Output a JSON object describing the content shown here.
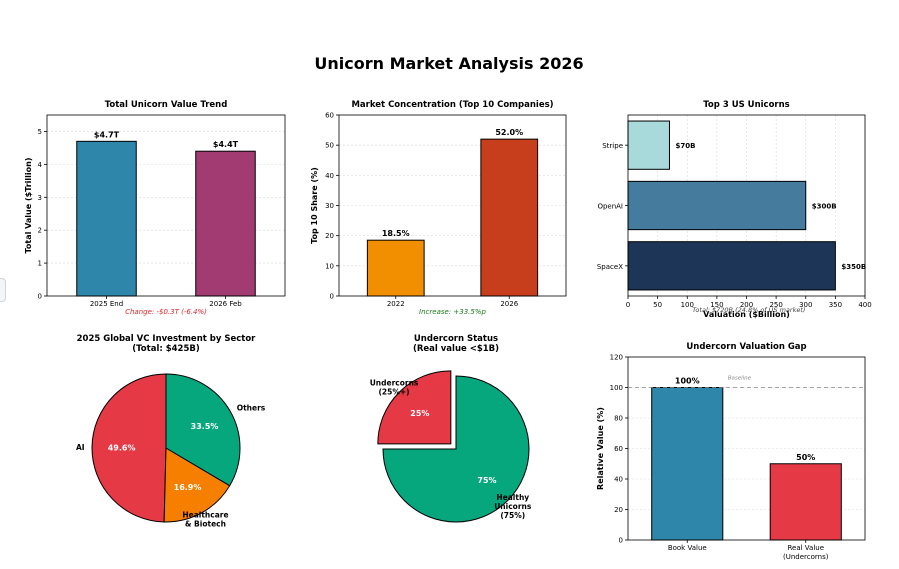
{
  "main_title": "Unicorn Market Analysis 2026",
  "colors": {
    "axis": "#000000",
    "grid": "#d9d9d9",
    "text": "#000000",
    "change_text": "#e0262a",
    "increase_text": "#1e7a1e",
    "note_text": "#444444",
    "baseline": "#8a8a8a"
  },
  "chart_data": [
    {
      "id": "value_trend",
      "type": "bar",
      "title": "Total Unicorn Value Trend",
      "ylabel": "Total Value ($Trillion)",
      "xlabel": "",
      "ylim": [
        0,
        5.5
      ],
      "yticks": [
        0,
        1,
        2,
        3,
        4,
        5
      ],
      "categories": [
        "2025 End",
        "2026 Feb"
      ],
      "values": [
        4.7,
        4.4
      ],
      "value_labels": [
        "$4.7T",
        "$4.4T"
      ],
      "colors": [
        "#2e86ab",
        "#a23b72"
      ],
      "annotation": "Change: -$0.3T (-6.4%)",
      "grid": true
    },
    {
      "id": "concentration",
      "type": "bar",
      "title": "Market Concentration (Top 10 Companies)",
      "ylabel": "Top 10 Share (%)",
      "xlabel": "",
      "ylim": [
        0,
        60
      ],
      "yticks": [
        0,
        10,
        20,
        30,
        40,
        50,
        60
      ],
      "categories": [
        "2022",
        "2026"
      ],
      "values": [
        18.5,
        52.0
      ],
      "value_labels": [
        "18.5%",
        "52.0%"
      ],
      "colors": [
        "#f18f01",
        "#c73e1d"
      ],
      "annotation": "Increase: +33.5%p",
      "grid": true
    },
    {
      "id": "top3_us",
      "type": "bar",
      "orientation": "horizontal",
      "title": "Top 3 US Unicorns",
      "xlabel": "Valuation ($Billion)",
      "ylabel": "",
      "xlim": [
        0,
        400
      ],
      "xticks": [
        0,
        50,
        100,
        150,
        200,
        250,
        300,
        350,
        400
      ],
      "categories": [
        "SpaceX",
        "OpenAI",
        "Stripe"
      ],
      "values": [
        350,
        300,
        70
      ],
      "value_labels": [
        "$350B",
        "$300B",
        "$70B"
      ],
      "colors": [
        "#1d3557",
        "#457b9d",
        "#a8dadc"
      ],
      "annotation": "Total: $720B (24.8% of US market)",
      "grid": true
    },
    {
      "id": "vc_sector",
      "type": "pie",
      "title": "2025 Global VC Investment by Sector",
      "subtitle": "(Total: $425B)",
      "labels": [
        "AI",
        "Healthcare & Biotech",
        "Others"
      ],
      "label_lines": [
        [
          "AI"
        ],
        [
          "Healthcare",
          "& Biotech"
        ],
        [
          "Others"
        ]
      ],
      "values": [
        49.6,
        16.9,
        33.5
      ],
      "pct_labels": [
        "49.6%",
        "16.9%",
        "33.5%"
      ],
      "colors": [
        "#e63946",
        "#f77f00",
        "#06a77d"
      ]
    },
    {
      "id": "undercorn",
      "type": "pie",
      "title": "Undercorn Status",
      "subtitle": "(Real value <$1B)",
      "labels": [
        "Undercorns (25%+)",
        "Healthy Unicorns (75%)"
      ],
      "label_lines": [
        [
          "Undercorns",
          "(25%+)"
        ],
        [
          "Healthy",
          "Unicorns",
          "(75%)"
        ]
      ],
      "values": [
        25,
        75
      ],
      "pct_labels": [
        "25%",
        "75%"
      ],
      "colors": [
        "#e63946",
        "#06a77d"
      ],
      "explode": [
        0.1,
        0
      ]
    },
    {
      "id": "valuation_gap",
      "type": "bar",
      "title": "Undercorn Valuation Gap",
      "ylabel": "Relative Value (%)",
      "xlabel": "",
      "ylim": [
        0,
        120
      ],
      "yticks": [
        0,
        20,
        40,
        60,
        80,
        100,
        120
      ],
      "categories": [
        "Book Value",
        "Real Value\n(Undercorns)"
      ],
      "category_lines": [
        [
          "Book Value"
        ],
        [
          "Real Value",
          "(Undercorns)"
        ]
      ],
      "values": [
        100,
        50
      ],
      "value_labels": [
        "100%",
        "50%"
      ],
      "colors": [
        "#2e86ab",
        "#e63946"
      ],
      "baseline": 100,
      "baseline_label": "Baseline",
      "grid": true
    }
  ]
}
